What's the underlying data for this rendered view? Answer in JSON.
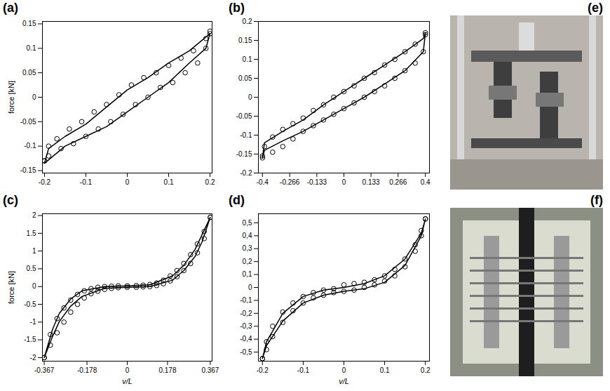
{
  "chart_data": [
    {
      "type": "line",
      "title": "(a)",
      "ylabel": "force [kN]",
      "xlim": [
        -0.205,
        0.205
      ],
      "ylim": [
        -0.155,
        0.155
      ],
      "xticks": [
        -0.2,
        -0.1,
        0,
        0.1,
        0.2
      ],
      "yticks": [
        -0.15,
        -0.1,
        -0.05,
        0,
        0.05,
        0.1,
        0.15
      ],
      "series": [
        {
          "type": "scatter",
          "marker": "circle",
          "color": "#000000",
          "x": [
            -0.2,
            -0.19,
            -0.17,
            -0.14,
            -0.11,
            -0.08,
            -0.05,
            -0.02,
            0.01,
            0.04,
            0.07,
            0.1,
            0.13,
            0.16,
            0.19,
            0.2,
            0.2,
            0.19,
            0.17,
            0.14,
            0.11,
            0.08,
            0.05,
            0.02,
            -0.01,
            -0.04,
            -0.07,
            -0.1,
            -0.13,
            -0.16,
            -0.19,
            -0.2
          ],
          "values": [
            -0.13,
            -0.1,
            -0.085,
            -0.065,
            -0.05,
            -0.03,
            -0.015,
            0.005,
            0.025,
            0.04,
            0.05,
            0.065,
            0.08,
            0.095,
            0.12,
            0.13,
            0.135,
            0.1,
            0.07,
            0.05,
            0.03,
            0.02,
            0.0,
            -0.015,
            -0.035,
            -0.05,
            -0.065,
            -0.08,
            -0.095,
            -0.105,
            -0.12,
            -0.13
          ]
        },
        {
          "type": "line",
          "line_style": "solid",
          "color": "#000000",
          "x": [
            -0.2,
            -0.19,
            -0.15,
            -0.1,
            -0.05,
            0,
            0.05,
            0.1,
            0.15,
            0.2,
            0.19,
            0.15,
            0.1,
            0.05,
            0,
            -0.05,
            -0.1,
            -0.15,
            -0.2
          ],
          "values": [
            -0.135,
            -0.105,
            -0.08,
            -0.055,
            -0.02,
            0.015,
            0.04,
            0.07,
            0.095,
            0.13,
            0.1,
            0.07,
            0.03,
            0.0,
            -0.03,
            -0.06,
            -0.08,
            -0.1,
            -0.135
          ]
        }
      ]
    },
    {
      "type": "line",
      "title": "(b)",
      "xlim": [
        -0.42,
        0.42
      ],
      "ylim": [
        -0.2,
        0.2
      ],
      "xticks": [
        -0.4,
        -0.266,
        -0.133,
        0,
        0.133,
        0.266,
        0.4
      ],
      "yticks": [
        -0.2,
        -0.15,
        -0.1,
        -0.05,
        0,
        0.05,
        0.1,
        0.15,
        0.2
      ],
      "series": [
        {
          "type": "scatter",
          "marker": "circle",
          "color": "#000000",
          "x": [
            -0.4,
            -0.39,
            -0.35,
            -0.3,
            -0.25,
            -0.2,
            -0.15,
            -0.1,
            -0.05,
            0,
            0.05,
            0.1,
            0.15,
            0.2,
            0.25,
            0.3,
            0.35,
            0.4,
            0.4,
            0.39,
            0.35,
            0.3,
            0.25,
            0.2,
            0.15,
            0.1,
            0.05,
            0,
            -0.05,
            -0.1,
            -0.15,
            -0.2,
            -0.25,
            -0.3,
            -0.35,
            -0.4
          ],
          "values": [
            -0.16,
            -0.13,
            -0.105,
            -0.085,
            -0.07,
            -0.055,
            -0.035,
            -0.02,
            0.0,
            0.015,
            0.03,
            0.05,
            0.065,
            0.085,
            0.1,
            0.12,
            0.14,
            0.17,
            0.165,
            0.12,
            0.09,
            0.07,
            0.05,
            0.03,
            0.015,
            0.0,
            -0.015,
            -0.03,
            -0.045,
            -0.06,
            -0.075,
            -0.09,
            -0.11,
            -0.13,
            -0.145,
            -0.155
          ]
        },
        {
          "type": "line",
          "line_style": "solid",
          "color": "#000000",
          "x": [
            -0.4,
            -0.39,
            -0.3,
            -0.2,
            -0.1,
            0,
            0.1,
            0.2,
            0.3,
            0.39,
            0.4,
            0.39,
            0.3,
            0.2,
            0.1,
            0,
            -0.1,
            -0.2,
            -0.3,
            -0.39,
            -0.4
          ],
          "values": [
            -0.16,
            -0.12,
            -0.09,
            -0.06,
            -0.02,
            0.015,
            0.05,
            0.085,
            0.12,
            0.155,
            0.17,
            0.12,
            0.07,
            0.035,
            0.0,
            -0.03,
            -0.06,
            -0.09,
            -0.115,
            -0.14,
            -0.16
          ]
        }
      ]
    },
    {
      "type": "line",
      "title": "(c)",
      "xlabel": "v/L",
      "ylabel": "force [kN]",
      "xlim": [
        -0.375,
        0.375
      ],
      "ylim": [
        -2.1,
        2.05
      ],
      "xticks": [
        -0.367,
        -0.178,
        0,
        0.178,
        0.367
      ],
      "yticks": [
        -2,
        -1.5,
        -1,
        -0.5,
        0,
        0.5,
        1,
        1.5,
        2
      ],
      "series": [
        {
          "type": "scatter",
          "marker": "circle",
          "color": "#000000",
          "x": [
            -0.367,
            -0.34,
            -0.31,
            -0.28,
            -0.25,
            -0.22,
            -0.19,
            -0.16,
            -0.13,
            -0.1,
            -0.07,
            -0.04,
            0,
            0.04,
            0.07,
            0.1,
            0.13,
            0.16,
            0.19,
            0.22,
            0.25,
            0.28,
            0.31,
            0.34,
            0.367,
            0.367,
            0.34,
            0.31,
            0.28,
            0.25,
            0.22,
            0.19,
            0.16,
            0.13,
            0.1,
            0.07,
            0.04,
            0,
            -0.04,
            -0.07,
            -0.1,
            -0.13,
            -0.16,
            -0.19,
            -0.22,
            -0.25,
            -0.28,
            -0.31,
            -0.34,
            -0.367
          ],
          "values": [
            -2.0,
            -1.35,
            -0.9,
            -0.6,
            -0.38,
            -0.22,
            -0.12,
            -0.06,
            -0.02,
            0.0,
            0.01,
            0.02,
            0.02,
            0.03,
            0.04,
            0.06,
            0.1,
            0.18,
            0.3,
            0.45,
            0.65,
            0.9,
            1.2,
            1.55,
            1.95,
            1.95,
            1.35,
            0.95,
            0.65,
            0.45,
            0.28,
            0.16,
            0.08,
            0.03,
            0.0,
            -0.01,
            -0.02,
            -0.02,
            -0.03,
            -0.05,
            -0.08,
            -0.13,
            -0.2,
            -0.32,
            -0.5,
            -0.72,
            -1.0,
            -1.3,
            -1.65,
            -2.0
          ]
        },
        {
          "type": "line",
          "line_style": "solid",
          "color": "#000000",
          "x": [
            -0.367,
            -0.33,
            -0.3,
            -0.25,
            -0.2,
            -0.1,
            0,
            0.1,
            0.2,
            0.25,
            0.3,
            0.367,
            0.33,
            0.3,
            0.25,
            0.2,
            0.1,
            0,
            -0.1,
            -0.2,
            -0.25,
            -0.3,
            -0.33,
            -0.367
          ],
          "values": [
            -2.0,
            -1.2,
            -0.75,
            -0.35,
            -0.12,
            0.0,
            0.02,
            0.05,
            0.3,
            0.6,
            1.05,
            1.95,
            1.25,
            0.85,
            0.45,
            0.18,
            0.0,
            -0.02,
            -0.05,
            -0.28,
            -0.55,
            -0.98,
            -1.4,
            -2.0
          ]
        }
      ]
    },
    {
      "type": "line",
      "title": "(d)",
      "xlabel": "v/L",
      "xlim": [
        -0.21,
        0.21
      ],
      "ylim": [
        -0.57,
        0.57
      ],
      "xticks": [
        -0.2,
        -0.1,
        0,
        0.1,
        0.2
      ],
      "yticks": [
        {
          "value": -0.5,
          "label": "-0,5"
        },
        {
          "value": -0.4,
          "label": "-0,4"
        },
        {
          "value": -0.3,
          "label": "-0,3"
        },
        {
          "value": -0.2,
          "label": "-0,2"
        },
        {
          "value": -0.1,
          "label": "-0,1"
        },
        0,
        {
          "value": 0.1,
          "label": "0,1"
        },
        {
          "value": 0.2,
          "label": "0,2"
        },
        {
          "value": 0.3,
          "label": "0,3"
        },
        {
          "value": 0.4,
          "label": "0,4"
        },
        {
          "value": 0.5,
          "label": "0,5"
        }
      ],
      "series": [
        {
          "type": "scatter",
          "marker": "circle",
          "color": "#000000",
          "x": [
            -0.2,
            -0.19,
            -0.175,
            -0.15,
            -0.125,
            -0.1,
            -0.075,
            -0.05,
            -0.025,
            0,
            0.025,
            0.05,
            0.075,
            0.1,
            0.125,
            0.15,
            0.175,
            0.19,
            0.2,
            0.2,
            0.19,
            0.175,
            0.15,
            0.125,
            0.1,
            0.075,
            0.05,
            0.025,
            0,
            -0.025,
            -0.05,
            -0.075,
            -0.1,
            -0.125,
            -0.15,
            -0.175,
            -0.19,
            -0.2
          ],
          "values": [
            -0.55,
            -0.42,
            -0.3,
            -0.19,
            -0.12,
            -0.07,
            -0.04,
            -0.02,
            -0.01,
            0.02,
            0.03,
            0.04,
            0.06,
            0.09,
            0.14,
            0.22,
            0.33,
            0.44,
            0.53,
            0.53,
            0.4,
            0.28,
            0.16,
            0.09,
            0.05,
            0.02,
            0.0,
            -0.02,
            -0.03,
            -0.04,
            -0.06,
            -0.08,
            -0.12,
            -0.18,
            -0.27,
            -0.38,
            -0.48,
            -0.55
          ]
        },
        {
          "type": "line",
          "line_style": "solid",
          "color": "#000000",
          "x": [
            -0.2,
            -0.19,
            -0.15,
            -0.1,
            -0.05,
            0,
            0.05,
            0.1,
            0.15,
            0.19,
            0.2,
            0.19,
            0.15,
            0.1,
            0.05,
            0,
            -0.05,
            -0.1,
            -0.15,
            -0.19,
            -0.2
          ],
          "values": [
            -0.55,
            -0.42,
            -0.2,
            -0.07,
            -0.02,
            0.0,
            0.03,
            0.09,
            0.22,
            0.42,
            0.53,
            0.4,
            0.17,
            0.04,
            -0.01,
            -0.03,
            -0.06,
            -0.12,
            -0.26,
            -0.45,
            -0.55
          ]
        }
      ]
    }
  ],
  "images": [
    {
      "label": "(e)"
    },
    {
      "label": "(f)"
    }
  ]
}
